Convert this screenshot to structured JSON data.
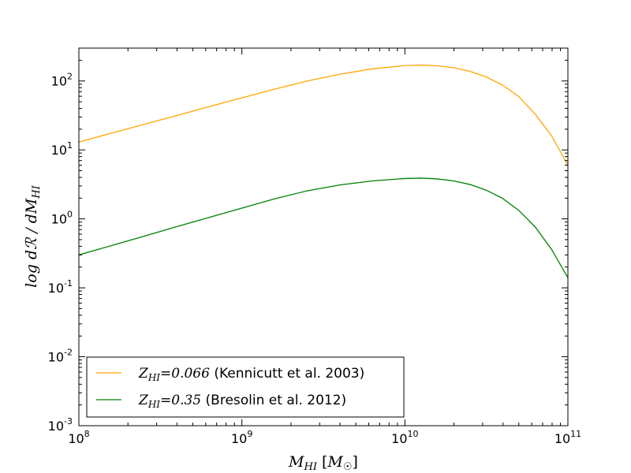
{
  "chart_data": {
    "type": "line",
    "xscale": "log",
    "yscale": "log",
    "xlim": [
      100000000.0,
      100000000000.0
    ],
    "ylim": [
      0.001,
      300
    ],
    "xlabel": {
      "main": "M",
      "sub": "HI",
      "unit_open": " [",
      "unit_main": "M",
      "unit_sub": "☉",
      "unit_close": "]"
    },
    "ylabel": {
      "main": "log dℛ / dM",
      "sub": "HI"
    },
    "x_ticks": [
      {
        "value": 100000000.0,
        "base": "10",
        "exp": "8"
      },
      {
        "value": 1000000000.0,
        "base": "10",
        "exp": "9"
      },
      {
        "value": 10000000000.0,
        "base": "10",
        "exp": "10"
      },
      {
        "value": 100000000000.0,
        "base": "10",
        "exp": "11"
      }
    ],
    "y_ticks": [
      {
        "value": 0.001,
        "base": "10",
        "exp": "-3"
      },
      {
        "value": 0.01,
        "base": "10",
        "exp": "-2"
      },
      {
        "value": 0.1,
        "base": "10",
        "exp": "-1"
      },
      {
        "value": 1,
        "base": "10",
        "exp": "0"
      },
      {
        "value": 10,
        "base": "10",
        "exp": "1"
      },
      {
        "value": 100,
        "base": "10",
        "exp": "2"
      }
    ],
    "legend_position": "lower-left",
    "series": [
      {
        "name": "Z_HI=0.066 (Kennicutt et al. 2003)",
        "label_math_main": "Z",
        "label_math_sub": "HI",
        "label_value": "=0.066",
        "label_text": " (Kennicutt et al. 2003)",
        "color": "#ffa500",
        "x": [
          100000000.0,
          158500000.0,
          251200000.0,
          398100000.0,
          631000000.0,
          1000000000.0,
          1585000000.0,
          2512000000.0,
          3981000000.0,
          6310000000.0,
          10000000000.0,
          12590000000.0,
          15850000000.0,
          19950000000.0,
          25120000000.0,
          31620000000.0,
          39810000000.0,
          50120000000.0,
          63100000000.0,
          79430000000.0,
          100000000000.0
        ],
        "y": [
          13,
          17.5,
          23.5,
          31.5,
          42.5,
          57,
          76,
          100,
          125,
          150,
          167,
          170,
          166,
          156,
          138,
          114,
          87,
          59,
          33,
          16,
          6
        ]
      },
      {
        "name": "Z_HI=0.35 (Bresolin et al. 2012)",
        "label_math_main": "Z",
        "label_math_sub": "HI",
        "label_value": "=0.35",
        "label_text": " (Bresolin et al. 2012)",
        "color": "#008000",
        "x": [
          100000000.0,
          158500000.0,
          251200000.0,
          398100000.0,
          631000000.0,
          1000000000.0,
          1585000000.0,
          2512000000.0,
          3981000000.0,
          6310000000.0,
          10000000000.0,
          12590000000.0,
          15850000000.0,
          19950000000.0,
          25120000000.0,
          31620000000.0,
          39810000000.0,
          50120000000.0,
          63100000000.0,
          79430000000.0,
          100000000000.0
        ],
        "y": [
          0.3,
          0.41,
          0.56,
          0.77,
          1.05,
          1.43,
          1.95,
          2.55,
          3.1,
          3.55,
          3.85,
          3.9,
          3.8,
          3.55,
          3.15,
          2.6,
          1.98,
          1.32,
          0.76,
          0.36,
          0.14
        ]
      }
    ]
  }
}
